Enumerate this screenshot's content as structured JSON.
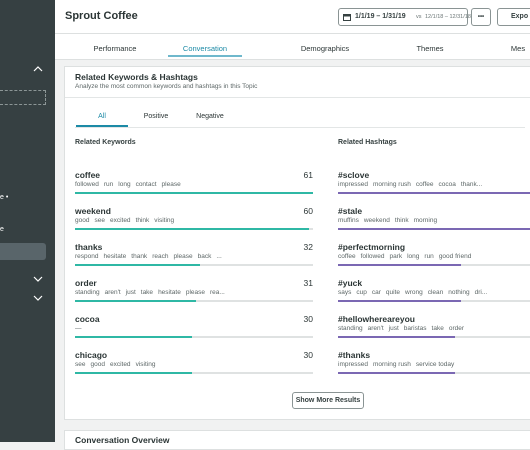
{
  "sidebar": {
    "items": [
      "e •",
      "e"
    ]
  },
  "header": {
    "title": "Sprout Coffee",
    "date_range": "1/1/19 – 1/31/19",
    "compare_prefix": "vs",
    "compare_range": "12/1/18 – 12/31/18",
    "more": "•••",
    "export": "Expo"
  },
  "tabs": {
    "items": [
      "Performance",
      "Conversation",
      "Demographics",
      "Themes",
      "Mes"
    ],
    "active": 1
  },
  "card": {
    "title": "Related Keywords & Hashtags",
    "subtitle": "Analyze the most common keywords and hashtags in this Topic",
    "filters": [
      "All",
      "Positive",
      "Negative"
    ],
    "active_filter": 0,
    "keywords": {
      "heading": "Related Keywords",
      "rows": [
        {
          "name": "coffee",
          "count": 61,
          "words": [
            "followed",
            "run",
            "long",
            "contact",
            "please"
          ]
        },
        {
          "name": "weekend",
          "count": 60,
          "words": [
            "good",
            "see",
            "excited",
            "think",
            "visiting"
          ]
        },
        {
          "name": "thanks",
          "count": 32,
          "words": [
            "respond",
            "hesitate",
            "thank",
            "reach",
            "please",
            "back",
            "..."
          ]
        },
        {
          "name": "order",
          "count": 31,
          "words": [
            "standing",
            "aren't",
            "just",
            "take",
            "hesitate",
            "please",
            "rea..."
          ]
        },
        {
          "name": "cocoa",
          "count": 30,
          "words": [
            "—"
          ]
        },
        {
          "name": "chicago",
          "count": 30,
          "words": [
            "see",
            "good",
            "excited",
            "visiting"
          ]
        }
      ]
    },
    "hashtags": {
      "heading": "Related Hashtags",
      "rows": [
        {
          "name": "#sclove",
          "words": [
            "impressed",
            "morning rush",
            "coffee",
            "cocoa",
            "thank..."
          ]
        },
        {
          "name": "#stale",
          "words": [
            "muffins",
            "weekend",
            "think",
            "morning"
          ]
        },
        {
          "name": "#perfectmorning",
          "words": [
            "coffee",
            "followed",
            "park",
            "long",
            "run",
            "good friend"
          ]
        },
        {
          "name": "#yuck",
          "words": [
            "says",
            "cup",
            "car",
            "quite",
            "wrong",
            "clean",
            "nothing",
            "dri..."
          ]
        },
        {
          "name": "#hellowhereareyou",
          "words": [
            "standing",
            "aren't",
            "just",
            "baristas",
            "take",
            "order"
          ]
        },
        {
          "name": "#thanks",
          "words": [
            "impressed",
            "morning rush",
            "service today"
          ]
        }
      ]
    },
    "button": "Show More Results"
  },
  "next_card": {
    "title": "Conversation Overview"
  }
}
